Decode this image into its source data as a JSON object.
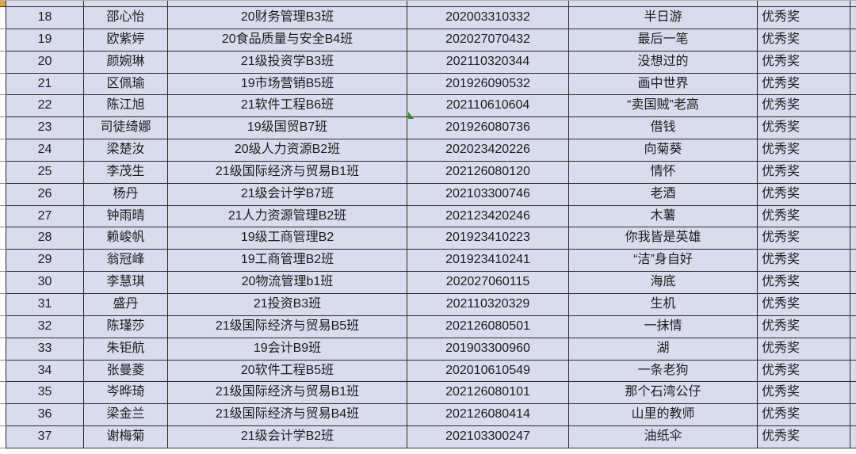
{
  "app": {
    "kind": "spreadsheet-award-list"
  },
  "colors": {
    "cell_fill": "#d8dcee",
    "grid_border": "#2b2b2b",
    "gutter_line": "#8f8f8f",
    "error_indicator_green": "#2e8b22",
    "corner_highlight_yellow": "#dca63c",
    "page_background": "#ffffff",
    "text": "#1c1c1c"
  },
  "table": {
    "columns": [
      "no",
      "name",
      "class_name",
      "student_id",
      "work_title",
      "award"
    ],
    "first_row_number": "18",
    "last_row_number": "37",
    "award_label_common": "优秀奖",
    "rows": [
      {
        "no": "18",
        "name": "邵心怡",
        "class_name": "20财务管理B3班",
        "student_id": "202003310332",
        "work_title": "半日游",
        "award": "优秀奖"
      },
      {
        "no": "19",
        "name": "欧紫婷",
        "class_name": "20食品质量与安全B4班",
        "student_id": "202027070432",
        "work_title": "最后一笔",
        "award": "优秀奖"
      },
      {
        "no": "20",
        "name": "颜婉琳",
        "class_name": "21级投资学B3班",
        "student_id": "202110320344",
        "work_title": "没想过的",
        "award": "优秀奖"
      },
      {
        "no": "21",
        "name": "区佩瑜",
        "class_name": "19市场营销B5班",
        "student_id": "201926090532",
        "work_title": "画中世界",
        "award": "优秀奖"
      },
      {
        "no": "22",
        "name": "陈江旭",
        "class_name": "21软件工程B6班",
        "student_id": "202110610604",
        "work_title": "“卖国贼”老高",
        "award": "优秀奖"
      },
      {
        "no": "23",
        "name": "司徒绮娜",
        "class_name": "19级国贸B7班",
        "student_id": "201926080736",
        "work_title": "借钱",
        "award": "优秀奖"
      },
      {
        "no": "24",
        "name": "梁楚汝",
        "class_name": "20级人力资源B2班",
        "student_id": "202023420226",
        "work_title": "向菊葵",
        "award": "优秀奖"
      },
      {
        "no": "25",
        "name": "李茂生",
        "class_name": "21级国际经济与贸易B1班",
        "student_id": "202126080120",
        "work_title": "情怀",
        "award": "优秀奖"
      },
      {
        "no": "26",
        "name": "杨丹",
        "class_name": "21级会计学B7班",
        "student_id": "202103300746",
        "work_title": "老酒",
        "award": "优秀奖"
      },
      {
        "no": "27",
        "name": "钟雨晴",
        "class_name": "21人力资源管理B2班",
        "student_id": "202123420246",
        "work_title": "木薯",
        "award": "优秀奖"
      },
      {
        "no": "28",
        "name": "赖峻帆",
        "class_name": "19级工商管理B2",
        "student_id": "201923410223",
        "work_title": "你我皆是英雄",
        "award": "优秀奖"
      },
      {
        "no": "29",
        "name": "翁冠峰",
        "class_name": "19工商管理B2班",
        "student_id": "201923410241",
        "work_title": "“洁”身自好",
        "award": "优秀奖"
      },
      {
        "no": "30",
        "name": "李慧琪",
        "class_name": "20物流管理b1班",
        "student_id": "202027060115",
        "work_title": "海底",
        "award": "优秀奖"
      },
      {
        "no": "31",
        "name": "盛丹",
        "class_name": "21投资B3班",
        "student_id": "202110320329",
        "work_title": "生机",
        "award": "优秀奖"
      },
      {
        "no": "32",
        "name": "陈瑾莎",
        "class_name": "21级国际经济与贸易B5班",
        "student_id": "202126080501",
        "work_title": "一抹情",
        "award": "优秀奖"
      },
      {
        "no": "33",
        "name": "朱钜航",
        "class_name": "19会计B9班",
        "student_id": "201903300960",
        "work_title": "湖",
        "award": "优秀奖"
      },
      {
        "no": "34",
        "name": "张曼菱",
        "class_name": "20软件工程B5班",
        "student_id": "202010610549",
        "work_title": "一条老狗",
        "award": "优秀奖"
      },
      {
        "no": "35",
        "name": "岑晔琦",
        "class_name": "21级国际经济与贸易B1班",
        "student_id": "202126080101",
        "work_title": "那个石湾公仔",
        "award": "优秀奖"
      },
      {
        "no": "36",
        "name": "梁金兰",
        "class_name": "21级国际经济与贸易B4班",
        "student_id": "202126080414",
        "work_title": "山里的教师",
        "award": "优秀奖"
      },
      {
        "no": "37",
        "name": "谢梅菊",
        "class_name": "21级会计学B2班",
        "student_id": "202103300247",
        "work_title": "油纸伞",
        "award": "优秀奖"
      }
    ],
    "error_indicator_row": "23",
    "error_indicator_column": "student_id"
  }
}
